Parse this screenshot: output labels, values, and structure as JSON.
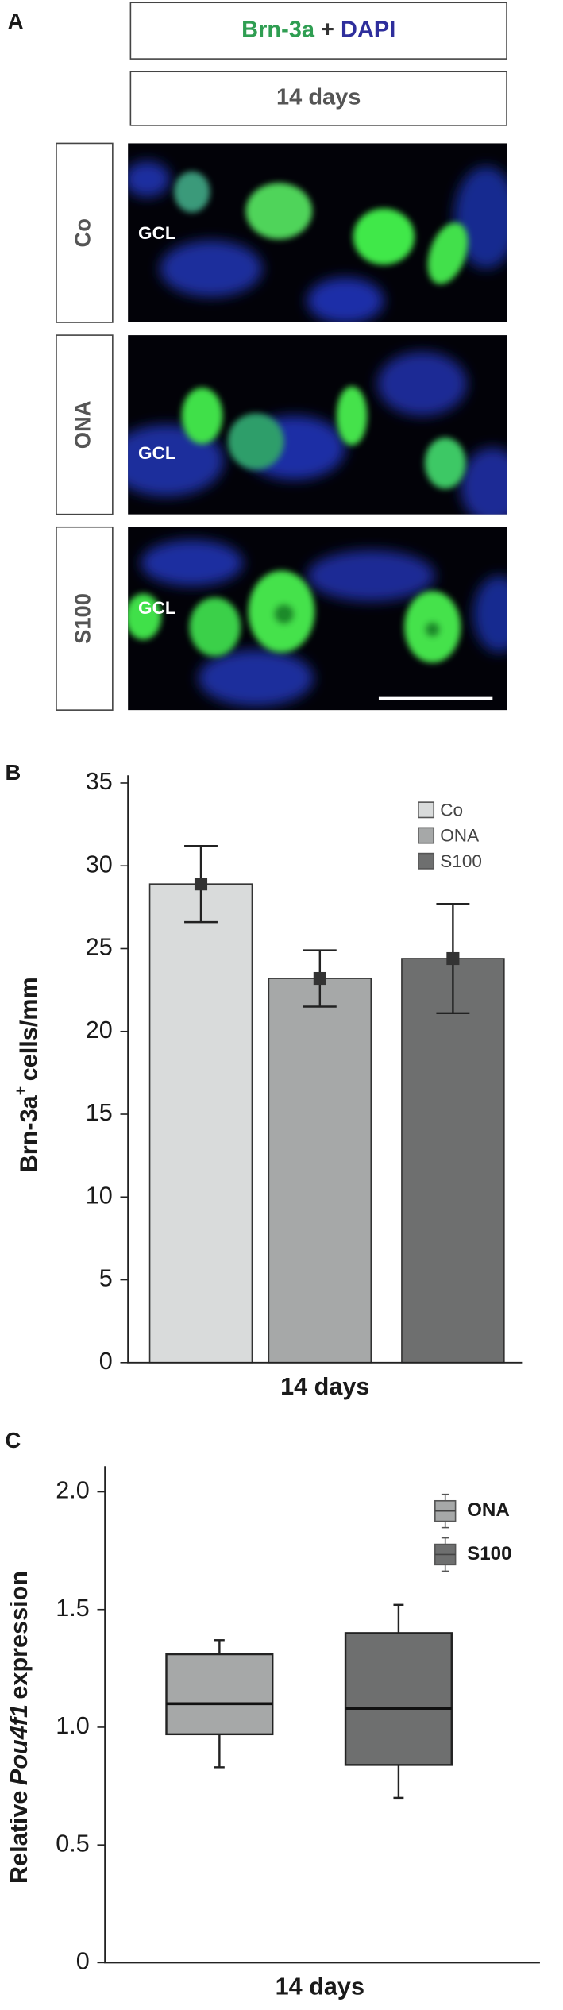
{
  "panel_a": {
    "letter": "A",
    "title_parts": [
      {
        "text": "Brn-3a",
        "color": "#2f9e52"
      },
      {
        "text": "+",
        "color": "#333333"
      },
      {
        "text": "DAPI",
        "color": "#2e2e9c"
      }
    ],
    "subtitle": "14 days",
    "rows": [
      {
        "label": "Co",
        "layer": "GCL"
      },
      {
        "label": "ONA",
        "layer": "GCL"
      },
      {
        "label": "S100",
        "layer": "GCL"
      }
    ]
  },
  "chart_data": [
    {
      "type": "bar",
      "letter": "B",
      "ylabel_parts": [
        "Brn-3a",
        "+",
        "cells/mm"
      ],
      "xlabel": "14 days",
      "categories": [
        "Co",
        "ONA",
        "S100"
      ],
      "values": [
        28.9,
        23.2,
        24.4
      ],
      "errors": [
        2.3,
        1.7,
        3.3
      ],
      "colors": [
        "#d9dbdb",
        "#a6a8a8",
        "#6e6f6f"
      ],
      "ylim": [
        0,
        35
      ],
      "yticks": [
        0,
        5,
        10,
        15,
        20,
        25,
        30,
        35
      ],
      "legend": "upper right"
    },
    {
      "type": "box",
      "letter": "C",
      "ylabel_parts": [
        "Relative",
        "Pou4f1",
        "expression"
      ],
      "xlabel": "14 days",
      "series": [
        {
          "name": "ONA",
          "color": "#a6a8a8",
          "whisker_low": 0.83,
          "q1": 0.97,
          "median": 1.1,
          "q3": 1.31,
          "whisker_high": 1.37
        },
        {
          "name": "S100",
          "color": "#6e6f6f",
          "whisker_low": 0.7,
          "q1": 0.84,
          "median": 1.08,
          "q3": 1.4,
          "whisker_high": 1.52
        }
      ],
      "ylim": [
        0,
        2
      ],
      "yticks": [
        0,
        0.5,
        {
          "value": 1,
          "label": "1.0"
        },
        1.5,
        {
          "value": 2,
          "label": "2.0"
        }
      ],
      "legend": "upper right"
    }
  ]
}
